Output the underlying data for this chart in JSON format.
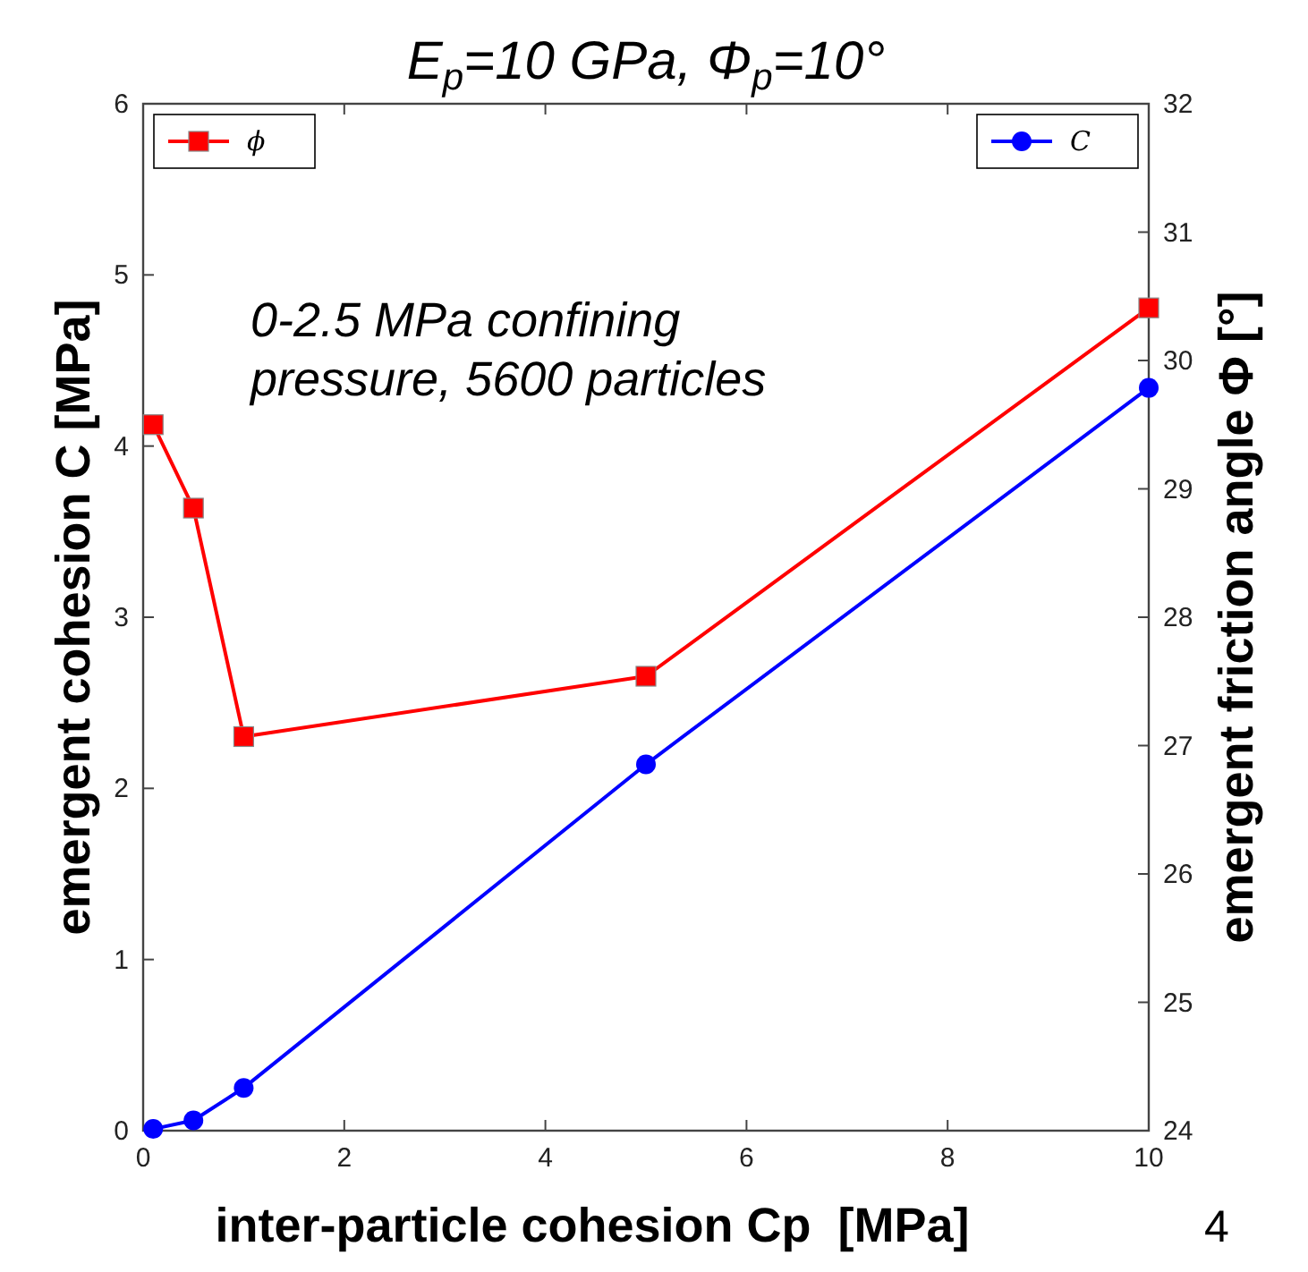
{
  "chart_data": {
    "type": "line",
    "title": "E$_{p}$=10 GPa, Φ$_{p}$=10°",
    "xlabel": "inter-particle cohesion Cp  [MPa]",
    "ylabel": "emergent cohesion C [MPa]",
    "y2label": "emergent friction angle Φ [°]",
    "annotations": [
      "0-2.5 MPa confining\npressure, 5600 particles",
      "4"
    ],
    "x": [
      0.1,
      0.5,
      1,
      5,
      10
    ],
    "series": [
      {
        "name": "ϕ",
        "color": "#ff0000",
        "values": [
          29.5,
          28.85,
          27.07,
          27.54,
          30.41
        ],
        "axis": "y2",
        "marker": "square"
      },
      {
        "name": "C",
        "color": "#0000ff",
        "values": [
          0.01,
          0.06,
          0.25,
          2.14,
          4.34
        ],
        "marker": "circle"
      }
    ],
    "xlim": [
      0,
      10
    ],
    "xticks": [
      0,
      2,
      4,
      6,
      8,
      10
    ],
    "ylim": [
      0,
      6
    ],
    "yticks": [
      0,
      1,
      2,
      3,
      4,
      5,
      6
    ],
    "y2lim": [
      24,
      32
    ],
    "y2ticks": [
      24,
      25,
      26,
      27,
      28,
      29,
      30,
      31,
      32
    ],
    "grid": false,
    "legend": "top",
    "line_style": "solid"
  }
}
